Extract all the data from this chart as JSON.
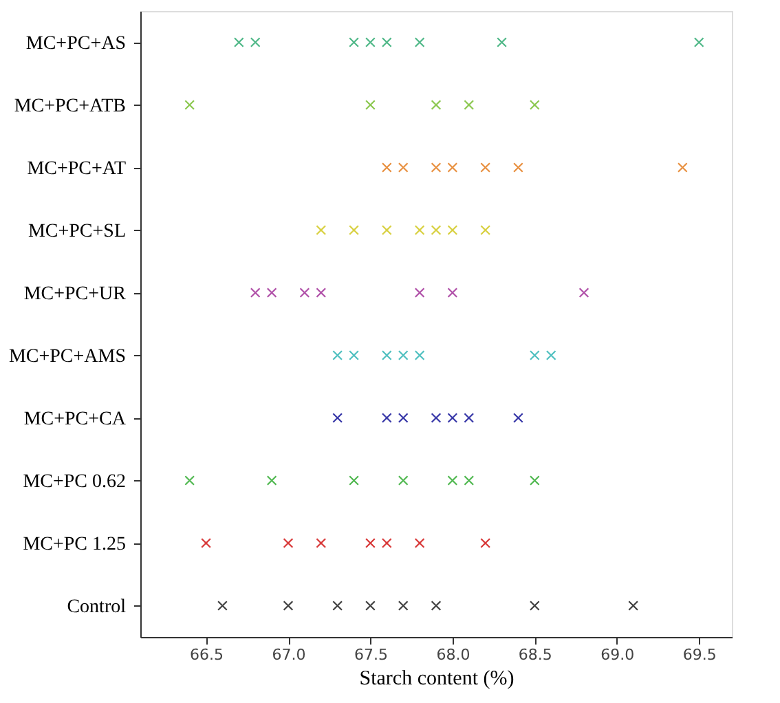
{
  "chart_data": {
    "type": "scatter",
    "orientation": "horizontal",
    "xlabel": "Starch content (%)",
    "marker": "cross",
    "grid": false,
    "legend": false,
    "categories": [
      "MC+PC+AS",
      "MC+PC+ATB",
      "MC+PC+AT",
      "MC+PC+SL",
      "MC+PC+UR",
      "MC+PC+AMS",
      "MC+PC+CA",
      "MC+PC 0.62",
      "MC+PC 1.25",
      "Control"
    ],
    "xlim": [
      66.1,
      69.7
    ],
    "xticks": [
      66.5,
      {
        "value": 67,
        "label": "67.0"
      },
      67.5,
      {
        "value": 68,
        "label": "68.0"
      },
      68.5,
      {
        "value": 69,
        "label": "69.0"
      },
      69.5
    ],
    "series": [
      {
        "color": "#50b888",
        "x": [
          "MC+PC+AS",
          "MC+PC+AS",
          "MC+PC+AS",
          "MC+PC+AS",
          "MC+PC+AS",
          "MC+PC+AS",
          "MC+PC+AS",
          "MC+PC+AS"
        ],
        "values": [
          66.7,
          66.8,
          67.4,
          67.5,
          67.6,
          67.8,
          68.3,
          69.5
        ]
      },
      {
        "color": "#8cc850",
        "x": [
          "MC+PC+ATB",
          "MC+PC+ATB",
          "MC+PC+ATB",
          "MC+PC+ATB",
          "MC+PC+ATB"
        ],
        "values": [
          66.4,
          67.5,
          67.9,
          68.1,
          68.5
        ]
      },
      {
        "color": "#e89040",
        "x": [
          "MC+PC+AT",
          "MC+PC+AT",
          "MC+PC+AT",
          "MC+PC+AT",
          "MC+PC+AT",
          "MC+PC+AT",
          "MC+PC+AT"
        ],
        "values": [
          67.6,
          67.7,
          67.9,
          68.0,
          68.2,
          68.4,
          69.4
        ]
      },
      {
        "color": "#d8d040",
        "x": [
          "MC+PC+SL",
          "MC+PC+SL",
          "MC+PC+SL",
          "MC+PC+SL",
          "MC+PC+SL",
          "MC+PC+SL",
          "MC+PC+SL"
        ],
        "values": [
          67.2,
          67.4,
          67.6,
          67.8,
          67.9,
          68.0,
          68.2
        ]
      },
      {
        "color": "#b050a8",
        "x": [
          "MC+PC+UR",
          "MC+PC+UR",
          "MC+PC+UR",
          "MC+PC+UR",
          "MC+PC+UR",
          "MC+PC+UR",
          "MC+PC+UR"
        ],
        "values": [
          66.8,
          66.9,
          67.1,
          67.2,
          67.8,
          68.0,
          68.8
        ]
      },
      {
        "color": "#50c0c0",
        "x": [
          "MC+PC+AMS",
          "MC+PC+AMS",
          "MC+PC+AMS",
          "MC+PC+AMS",
          "MC+PC+AMS",
          "MC+PC+AMS",
          "MC+PC+AMS"
        ],
        "values": [
          67.3,
          67.4,
          67.6,
          67.7,
          67.8,
          68.5,
          68.6
        ]
      },
      {
        "color": "#3838a8",
        "x": [
          "MC+PC+CA",
          "MC+PC+CA",
          "MC+PC+CA",
          "MC+PC+CA",
          "MC+PC+CA",
          "MC+PC+CA",
          "MC+PC+CA"
        ],
        "values": [
          67.3,
          67.6,
          67.7,
          67.9,
          68.0,
          68.1,
          68.4
        ]
      },
      {
        "color": "#50b850",
        "x": [
          "MC+PC 0.62",
          "MC+PC 0.62",
          "MC+PC 0.62",
          "MC+PC 0.62",
          "MC+PC 0.62",
          "MC+PC 0.62",
          "MC+PC 0.62"
        ],
        "values": [
          66.4,
          66.9,
          67.4,
          67.7,
          68.0,
          68.1,
          68.5
        ]
      },
      {
        "color": "#d83838",
        "x": [
          "MC+PC 1.25",
          "MC+PC 1.25",
          "MC+PC 1.25",
          "MC+PC 1.25",
          "MC+PC 1.25",
          "MC+PC 1.25",
          "MC+PC 1.25"
        ],
        "values": [
          66.5,
          67.0,
          67.2,
          67.5,
          67.6,
          67.8,
          68.2
        ]
      },
      {
        "color": "#404040",
        "x": [
          "Control",
          "Control",
          "Control",
          "Control",
          "Control",
          "Control",
          "Control",
          "Control"
        ],
        "values": [
          66.6,
          67.0,
          67.3,
          67.5,
          67.7,
          67.9,
          68.5,
          69.1
        ]
      }
    ]
  }
}
